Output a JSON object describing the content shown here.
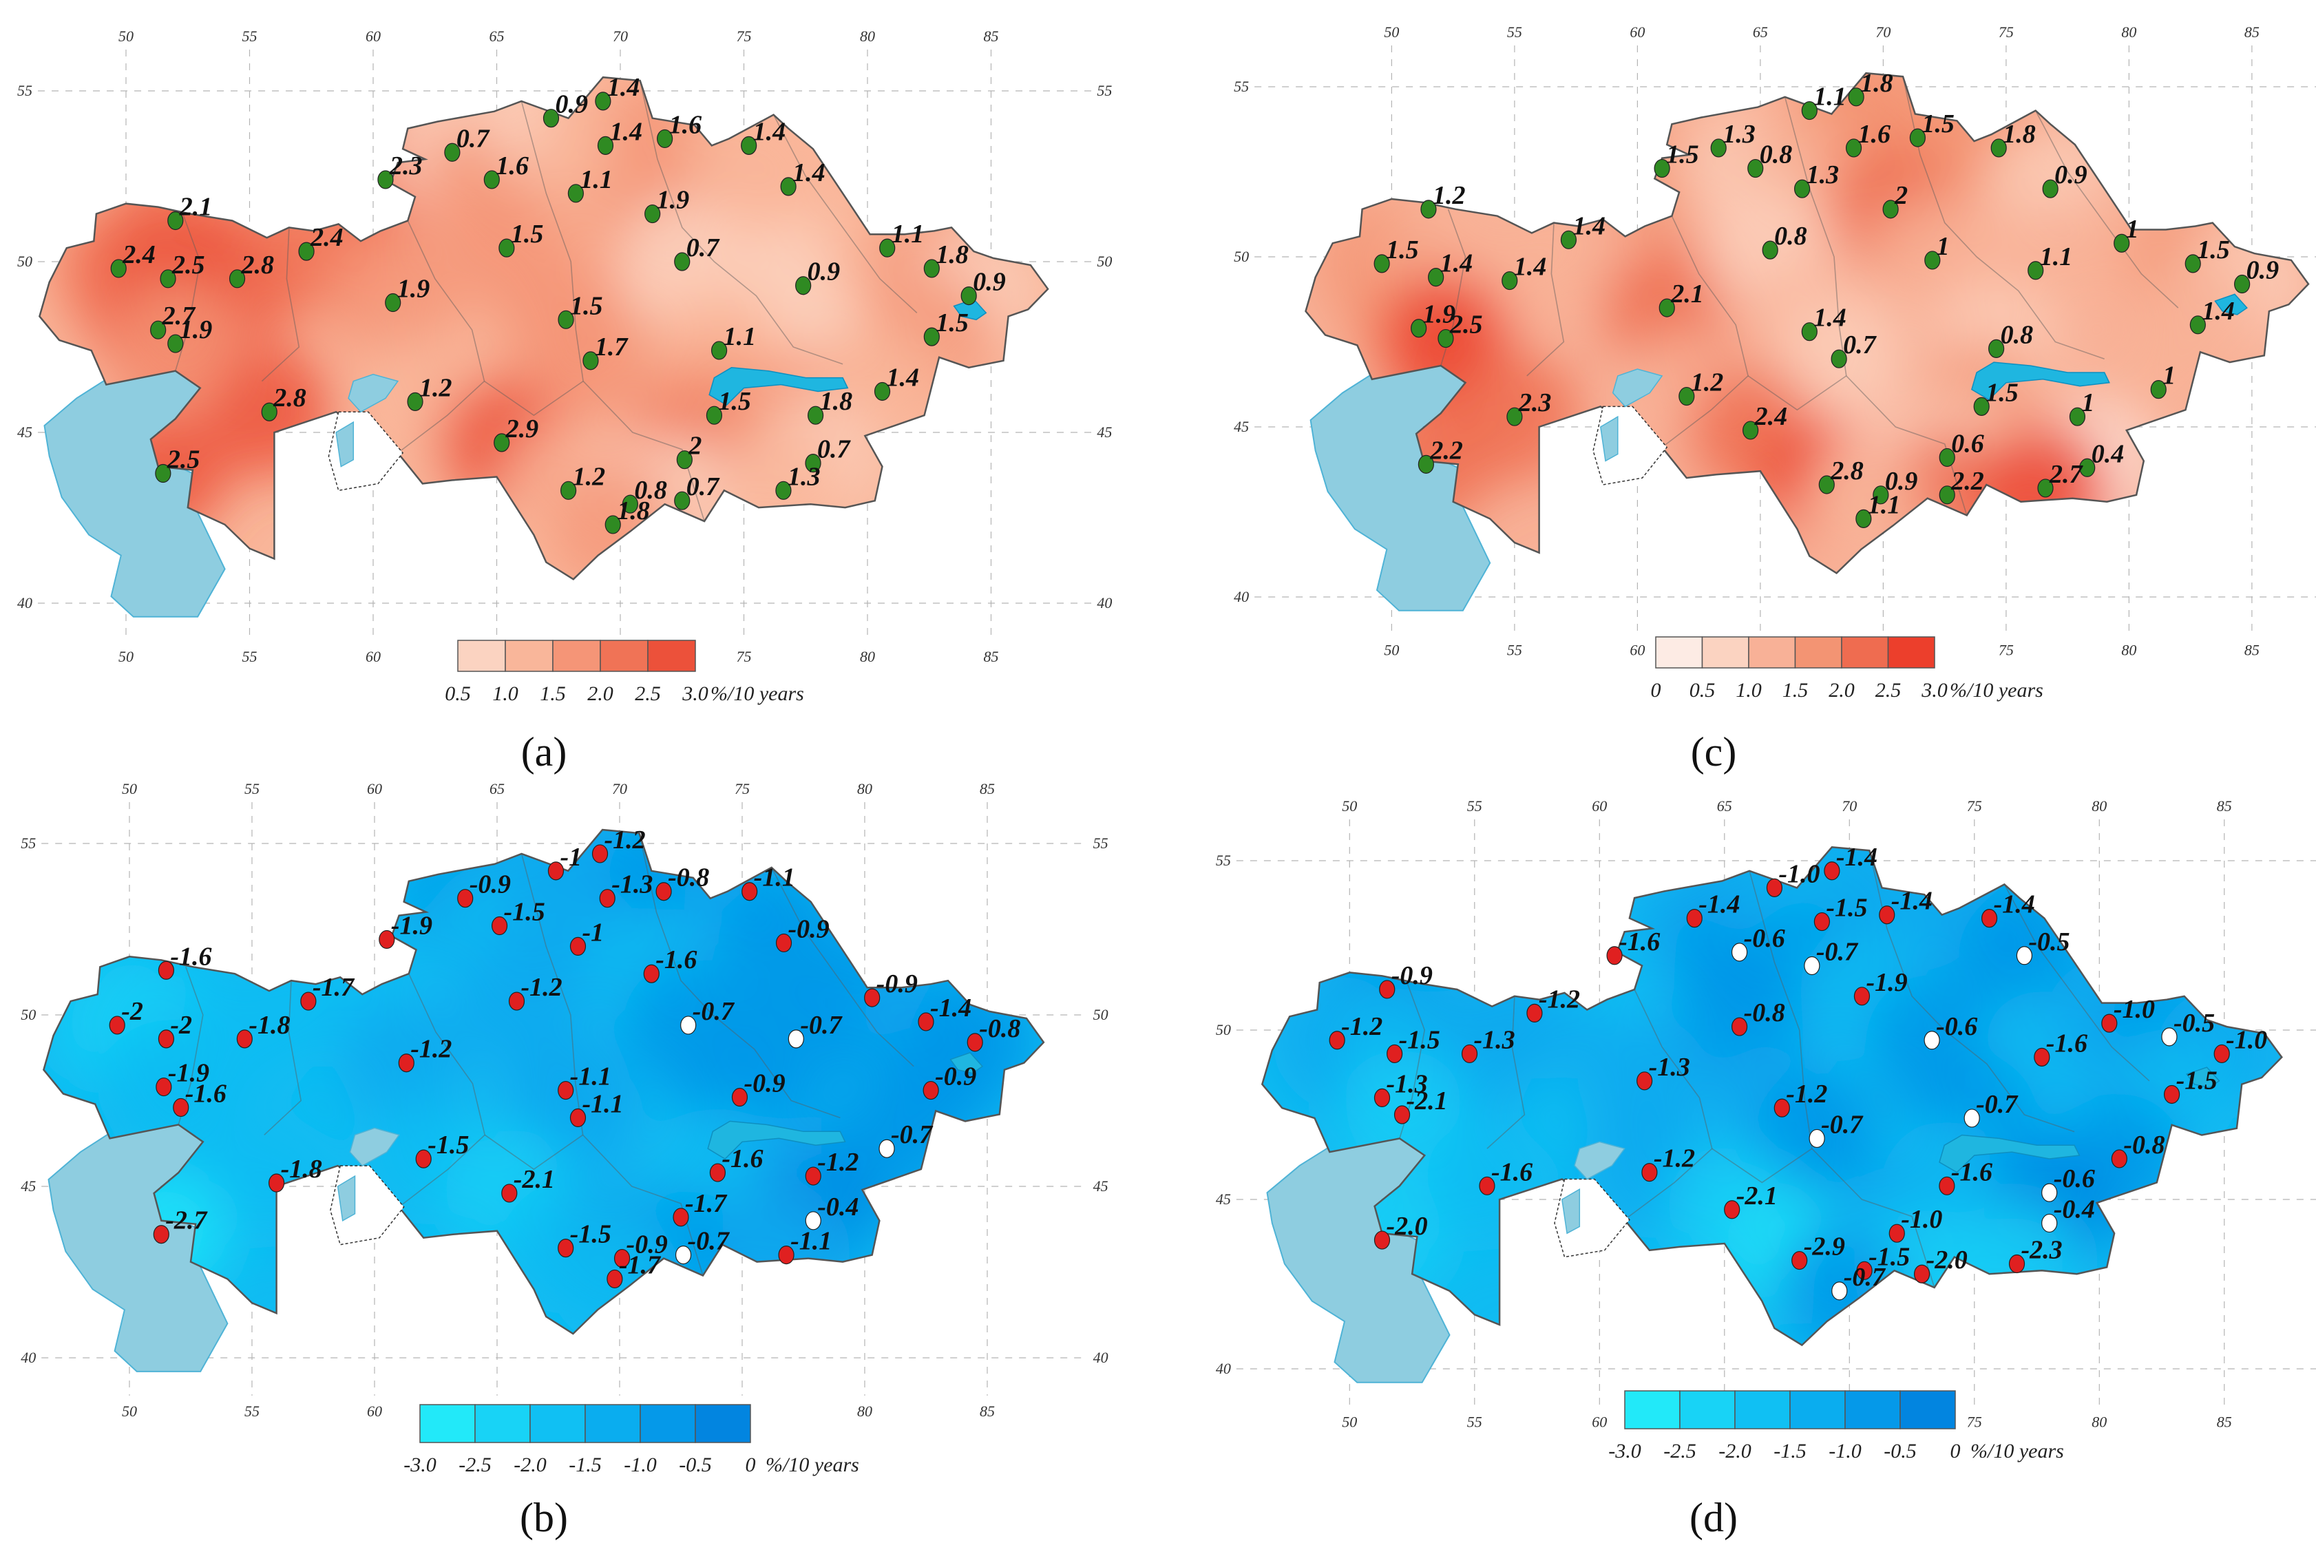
{
  "legend_unit": "%/10 years",
  "sea_color": "#8ecde0",
  "grid_color": "#b4b4b4",
  "panels": [
    {
      "id": "a",
      "caption": "(a)",
      "scheme": "warm",
      "colors": [
        "#fbd3c1",
        "#f9b69a",
        "#f59577",
        "#f07356",
        "#ec513a"
      ],
      "dominant": 1,
      "legend_colors": [
        "#fbd3c1",
        "#f9b69a",
        "#f59577",
        "#f07356",
        "#ec513a"
      ],
      "legend_labels": [
        "0.5",
        "1.0",
        "1.5",
        "2.0",
        "2.5",
        "3.0"
      ],
      "marker_color": "#2f8a22",
      "lon_top": [
        "50",
        "55",
        "60",
        "65",
        "70",
        "75",
        "80",
        "85"
      ],
      "lon_bottom": [
        "50",
        "55",
        "60",
        "65",
        "70",
        "75",
        "80",
        "85"
      ],
      "lat_left": [
        "55",
        "50",
        "45",
        "40"
      ],
      "lat_right": [
        "55",
        "50",
        "45",
        "40"
      ],
      "stations": [
        {
          "v": "2.1",
          "lon": 52,
          "lat": 51.2
        },
        {
          "v": "2.4",
          "lon": 49.7,
          "lat": 49.8
        },
        {
          "v": "2.5",
          "lon": 51.7,
          "lat": 49.5
        },
        {
          "v": "2.8",
          "lon": 54.5,
          "lat": 49.5
        },
        {
          "v": "2.7",
          "lon": 51.3,
          "lat": 48.0
        },
        {
          "v": "1.9",
          "lon": 52.0,
          "lat": 47.6
        },
        {
          "v": "2.8",
          "lon": 55.8,
          "lat": 45.6
        },
        {
          "v": "2.5",
          "lon": 51.5,
          "lat": 43.8
        },
        {
          "v": "2.4",
          "lon": 57.3,
          "lat": 50.3
        },
        {
          "v": "2.3",
          "lon": 60.5,
          "lat": 52.4
        },
        {
          "v": "0.7",
          "lon": 63.2,
          "lat": 53.2
        },
        {
          "v": "1.6",
          "lon": 64.8,
          "lat": 52.4
        },
        {
          "v": "0.9",
          "lon": 67.2,
          "lat": 54.2
        },
        {
          "v": "1.4",
          "lon": 69.3,
          "lat": 54.7
        },
        {
          "v": "1.4",
          "lon": 69.4,
          "lat": 53.4
        },
        {
          "v": "1.6",
          "lon": 71.8,
          "lat": 53.6
        },
        {
          "v": "1.1",
          "lon": 68.2,
          "lat": 52.0
        },
        {
          "v": "1.9",
          "lon": 71.3,
          "lat": 51.4
        },
        {
          "v": "1.4",
          "lon": 75.2,
          "lat": 53.4
        },
        {
          "v": "1.4",
          "lon": 76.8,
          "lat": 52.2
        },
        {
          "v": "1.5",
          "lon": 65.4,
          "lat": 50.4
        },
        {
          "v": "0.7",
          "lon": 72.5,
          "lat": 50.0
        },
        {
          "v": "0.9",
          "lon": 77.4,
          "lat": 49.3
        },
        {
          "v": "1.1",
          "lon": 80.8,
          "lat": 50.4
        },
        {
          "v": "1.8",
          "lon": 82.6,
          "lat": 49.8
        },
        {
          "v": "0.9",
          "lon": 84.1,
          "lat": 49.0
        },
        {
          "v": "1.5",
          "lon": 82.6,
          "lat": 47.8
        },
        {
          "v": "1.9",
          "lon": 60.8,
          "lat": 48.8
        },
        {
          "v": "1.5",
          "lon": 67.8,
          "lat": 48.3
        },
        {
          "v": "1.7",
          "lon": 68.8,
          "lat": 47.1
        },
        {
          "v": "1.1",
          "lon": 74.0,
          "lat": 47.4
        },
        {
          "v": "1.2",
          "lon": 61.7,
          "lat": 45.9
        },
        {
          "v": "2.9",
          "lon": 65.2,
          "lat": 44.7
        },
        {
          "v": "1.5",
          "lon": 73.8,
          "lat": 45.5
        },
        {
          "v": "1.8",
          "lon": 77.9,
          "lat": 45.5
        },
        {
          "v": "1.4",
          "lon": 80.6,
          "lat": 46.2
        },
        {
          "v": "0.7",
          "lon": 77.8,
          "lat": 44.1
        },
        {
          "v": "2",
          "lon": 72.6,
          "lat": 44.2
        },
        {
          "v": "1.2",
          "lon": 67.9,
          "lat": 43.3
        },
        {
          "v": "0.8",
          "lon": 70.4,
          "lat": 42.9
        },
        {
          "v": "0.7",
          "lon": 72.5,
          "lat": 43.0
        },
        {
          "v": "1.3",
          "lon": 76.6,
          "lat": 43.3
        },
        {
          "v": "1.8",
          "lon": 69.7,
          "lat": 42.3
        }
      ]
    },
    {
      "id": "c",
      "caption": "(c)",
      "scheme": "warm",
      "colors": [
        "#fde7de",
        "#fbcfbb",
        "#f8b197",
        "#f39473",
        "#ef6c50",
        "#ec3f2c"
      ],
      "dominant": 2,
      "legend_colors": [
        "#fdebe4",
        "#fbd3c1",
        "#f8b197",
        "#f39473",
        "#ef6c50",
        "#ec3f2c"
      ],
      "legend_labels": [
        "0",
        "0.5",
        "1.0",
        "1.5",
        "2.0",
        "2.5",
        "3.0"
      ],
      "marker_color": "#2f8a22",
      "lon_top": [
        "50",
        "55",
        "60",
        "65",
        "70",
        "75",
        "80",
        "85"
      ],
      "lon_bottom": [
        "50",
        "55",
        "60",
        "65",
        "70",
        "75",
        "80",
        "85"
      ],
      "lat_left": [
        "55",
        "50",
        "45",
        "40"
      ],
      "lat_right": [
        "55",
        "50",
        "45",
        "40"
      ],
      "stations": [
        {
          "v": "1.2",
          "lon": 51.5,
          "lat": 51.4
        },
        {
          "v": "1.5",
          "lon": 49.6,
          "lat": 49.8
        },
        {
          "v": "1.4",
          "lon": 51.8,
          "lat": 49.4
        },
        {
          "v": "1.4",
          "lon": 54.8,
          "lat": 49.3
        },
        {
          "v": "1.9",
          "lon": 51.1,
          "lat": 47.9
        },
        {
          "v": "2.5",
          "lon": 52.2,
          "lat": 47.6
        },
        {
          "v": "2.3",
          "lon": 55.0,
          "lat": 45.3
        },
        {
          "v": "2.2",
          "lon": 51.4,
          "lat": 43.9
        },
        {
          "v": "1.4",
          "lon": 57.2,
          "lat": 50.5
        },
        {
          "v": "2.1",
          "lon": 61.2,
          "lat": 48.5
        },
        {
          "v": "1.2",
          "lon": 62.0,
          "lat": 45.9
        },
        {
          "v": "1.5",
          "lon": 61.0,
          "lat": 52.6
        },
        {
          "v": "1.3",
          "lon": 63.3,
          "lat": 53.2
        },
        {
          "v": "0.8",
          "lon": 64.8,
          "lat": 52.6
        },
        {
          "v": "1.1",
          "lon": 67.0,
          "lat": 54.3
        },
        {
          "v": "1.8",
          "lon": 68.9,
          "lat": 54.7
        },
        {
          "v": "1.6",
          "lon": 68.8,
          "lat": 53.2
        },
        {
          "v": "1.5",
          "lon": 71.4,
          "lat": 53.5
        },
        {
          "v": "1.8",
          "lon": 74.7,
          "lat": 53.2
        },
        {
          "v": "1.3",
          "lon": 66.7,
          "lat": 52.0
        },
        {
          "v": "2",
          "lon": 70.3,
          "lat": 51.4
        },
        {
          "v": "0.9",
          "lon": 76.8,
          "lat": 52.0
        },
        {
          "v": "0.8",
          "lon": 65.4,
          "lat": 50.2
        },
        {
          "v": "1",
          "lon": 72.0,
          "lat": 49.9
        },
        {
          "v": "1.1",
          "lon": 76.2,
          "lat": 49.6
        },
        {
          "v": "1",
          "lon": 79.7,
          "lat": 50.4
        },
        {
          "v": "1.5",
          "lon": 82.6,
          "lat": 49.8
        },
        {
          "v": "0.9",
          "lon": 84.6,
          "lat": 49.2
        },
        {
          "v": "1.4",
          "lon": 82.8,
          "lat": 48.0
        },
        {
          "v": "1.4",
          "lon": 67.0,
          "lat": 47.8
        },
        {
          "v": "0.7",
          "lon": 68.2,
          "lat": 47.0
        },
        {
          "v": "0.8",
          "lon": 74.6,
          "lat": 47.3
        },
        {
          "v": "1.5",
          "lon": 74.0,
          "lat": 45.6
        },
        {
          "v": "1",
          "lon": 77.9,
          "lat": 45.3
        },
        {
          "v": "1",
          "lon": 81.2,
          "lat": 46.1
        },
        {
          "v": "2.4",
          "lon": 64.6,
          "lat": 44.9
        },
        {
          "v": "2.8",
          "lon": 67.7,
          "lat": 43.3
        },
        {
          "v": "0.6",
          "lon": 72.6,
          "lat": 44.1
        },
        {
          "v": "0.4",
          "lon": 78.3,
          "lat": 43.8
        },
        {
          "v": "0.9",
          "lon": 69.9,
          "lat": 43.0
        },
        {
          "v": "2.2",
          "lon": 72.6,
          "lat": 43.0
        },
        {
          "v": "2.7",
          "lon": 76.6,
          "lat": 43.2
        },
        {
          "v": "1.1",
          "lon": 69.2,
          "lat": 42.3
        }
      ]
    },
    {
      "id": "b",
      "caption": "(b)",
      "scheme": "cool",
      "colors": [
        "#22e4f8",
        "#18cff6",
        "#10bcf2",
        "#0aa9ee",
        "#0596e8",
        "#0285e0"
      ],
      "dominant": 2,
      "legend_colors": [
        "#22e9f9",
        "#18d3f6",
        "#10c0f3",
        "#0aadef",
        "#0599e9",
        "#0285e0"
      ],
      "legend_labels": [
        "-3.0",
        "-2.5",
        "-2.0",
        "-1.5",
        "-1.0",
        "-0.5",
        "0"
      ],
      "marker_color": "#e02020",
      "lon_top": [
        "50",
        "55",
        "60",
        "65",
        "70",
        "75",
        "80",
        "85"
      ],
      "lon_bottom": [
        "50",
        "55",
        "60",
        "65",
        "70",
        "75",
        "80",
        "85"
      ],
      "lat_left": [
        "55",
        "50",
        "45",
        "40"
      ],
      "lat_right": [
        "55",
        "50",
        "45",
        "40"
      ],
      "stations": [
        {
          "v": "-1.6",
          "lon": 51.5,
          "lat": 51.3
        },
        {
          "v": "-2",
          "lon": 49.5,
          "lat": 49.7
        },
        {
          "v": "-2",
          "lon": 51.5,
          "lat": 49.3
        },
        {
          "v": "-1.8",
          "lon": 54.7,
          "lat": 49.3
        },
        {
          "v": "-1.7",
          "lon": 57.3,
          "lat": 50.4
        },
        {
          "v": "-1.9",
          "lon": 51.4,
          "lat": 47.9
        },
        {
          "v": "-1.6",
          "lon": 52.1,
          "lat": 47.3
        },
        {
          "v": "-1.8",
          "lon": 56.0,
          "lat": 45.1
        },
        {
          "v": "-2.7",
          "lon": 51.3,
          "lat": 43.6
        },
        {
          "v": "-1.9",
          "lon": 60.5,
          "lat": 52.2
        },
        {
          "v": "-0.9",
          "lon": 63.7,
          "lat": 53.4
        },
        {
          "v": "-1.5",
          "lon": 65.1,
          "lat": 52.6
        },
        {
          "v": "-1",
          "lon": 67.4,
          "lat": 54.2
        },
        {
          "v": "-1.2",
          "lon": 69.2,
          "lat": 54.7
        },
        {
          "v": "-1.3",
          "lon": 69.5,
          "lat": 53.4
        },
        {
          "v": "-0.8",
          "lon": 71.8,
          "lat": 53.6
        },
        {
          "v": "-1.1",
          "lon": 75.3,
          "lat": 53.6
        },
        {
          "v": "-1",
          "lon": 68.3,
          "lat": 52.0
        },
        {
          "v": "-1.6",
          "lon": 71.3,
          "lat": 51.2
        },
        {
          "v": "-0.9",
          "lon": 76.7,
          "lat": 52.1
        },
        {
          "v": "-1.2",
          "lon": 65.8,
          "lat": 50.4
        },
        {
          "v": "-0.7",
          "lon": 72.8,
          "lat": 49.7
        },
        {
          "v": "-0.7",
          "lon": 77.2,
          "lat": 49.3
        },
        {
          "v": "-0.9",
          "lon": 80.3,
          "lat": 50.5
        },
        {
          "v": "-1.4",
          "lon": 82.5,
          "lat": 49.8
        },
        {
          "v": "-0.8",
          "lon": 84.5,
          "lat": 49.2
        },
        {
          "v": "-0.9",
          "lon": 82.7,
          "lat": 47.8
        },
        {
          "v": "-1.2",
          "lon": 61.3,
          "lat": 48.6
        },
        {
          "v": "-1.1",
          "lon": 67.8,
          "lat": 47.8
        },
        {
          "v": "-1.1",
          "lon": 68.3,
          "lat": 47.0
        },
        {
          "v": "-0.9",
          "lon": 74.9,
          "lat": 47.6
        },
        {
          "v": "-1.5",
          "lon": 62.0,
          "lat": 45.8
        },
        {
          "v": "-2.1",
          "lon": 65.5,
          "lat": 44.8
        },
        {
          "v": "-1.6",
          "lon": 74.0,
          "lat": 45.4
        },
        {
          "v": "-1.2",
          "lon": 77.9,
          "lat": 45.3
        },
        {
          "v": "-0.7",
          "lon": 80.9,
          "lat": 46.1
        },
        {
          "v": "-0.4",
          "lon": 77.9,
          "lat": 44.0
        },
        {
          "v": "-1.7",
          "lon": 72.5,
          "lat": 44.1
        },
        {
          "v": "-1.5",
          "lon": 67.8,
          "lat": 43.2
        },
        {
          "v": "-0.9",
          "lon": 70.1,
          "lat": 42.9
        },
        {
          "v": "-0.7",
          "lon": 72.6,
          "lat": 43.0
        },
        {
          "v": "-1.1",
          "lon": 76.8,
          "lat": 43.0
        },
        {
          "v": "-1.7",
          "lon": 69.8,
          "lat": 42.3
        }
      ]
    },
    {
      "id": "d",
      "caption": "(d)",
      "scheme": "cool",
      "colors": [
        "#22e4f8",
        "#18cff6",
        "#10bcf2",
        "#0aa9ee",
        "#0596e8",
        "#0285e0"
      ],
      "dominant": 2,
      "legend_colors": [
        "#22e9f9",
        "#18d3f6",
        "#10c0f3",
        "#0aadef",
        "#0599e9",
        "#0285e0"
      ],
      "legend_labels": [
        "-3.0",
        "-2.5",
        "-2.0",
        "-1.5",
        "-1.0",
        "-0.5",
        "0"
      ],
      "marker_color": "#e02020",
      "lon_top": [
        "50",
        "55",
        "60",
        "65",
        "70",
        "75",
        "80",
        "85"
      ],
      "lon_bottom": [
        "50",
        "55",
        "60",
        "65",
        "70",
        "75",
        "80",
        "85"
      ],
      "lat_left": [
        "55",
        "50",
        "45",
        "40"
      ],
      "lat_right": [
        "55",
        "50",
        "45",
        "40"
      ],
      "stations": [
        {
          "v": "-0.9",
          "lon": 51.5,
          "lat": 51.2
        },
        {
          "v": "-1.2",
          "lon": 49.5,
          "lat": 49.7
        },
        {
          "v": "-1.5",
          "lon": 51.8,
          "lat": 49.3
        },
        {
          "v": "-1.3",
          "lon": 54.8,
          "lat": 49.3
        },
        {
          "v": "-1.2",
          "lon": 57.4,
          "lat": 50.5
        },
        {
          "v": "-1.3",
          "lon": 51.3,
          "lat": 48.0
        },
        {
          "v": "-2.1",
          "lon": 52.1,
          "lat": 47.5
        },
        {
          "v": "-1.6",
          "lon": 55.5,
          "lat": 45.4
        },
        {
          "v": "-2.0",
          "lon": 51.3,
          "lat": 43.8
        },
        {
          "v": "-1.6",
          "lon": 60.6,
          "lat": 52.2
        },
        {
          "v": "-1.4",
          "lon": 63.8,
          "lat": 53.3
        },
        {
          "v": "-0.6",
          "lon": 65.6,
          "lat": 52.3
        },
        {
          "v": "-1.0",
          "lon": 67.0,
          "lat": 54.2
        },
        {
          "v": "-1.4",
          "lon": 69.3,
          "lat": 54.7
        },
        {
          "v": "-1.5",
          "lon": 68.9,
          "lat": 53.2
        },
        {
          "v": "-1.4",
          "lon": 71.5,
          "lat": 53.4
        },
        {
          "v": "-1.4",
          "lon": 75.6,
          "lat": 53.3
        },
        {
          "v": "-0.7",
          "lon": 68.5,
          "lat": 51.9
        },
        {
          "v": "-0.5",
          "lon": 77.0,
          "lat": 52.2
        },
        {
          "v": "-1.9",
          "lon": 70.5,
          "lat": 51.0
        },
        {
          "v": "-0.8",
          "lon": 65.6,
          "lat": 50.1
        },
        {
          "v": "-0.6",
          "lon": 73.3,
          "lat": 49.7
        },
        {
          "v": "-1.6",
          "lon": 77.7,
          "lat": 49.2
        },
        {
          "v": "-1.0",
          "lon": 80.4,
          "lat": 50.2
        },
        {
          "v": "-0.5",
          "lon": 82.8,
          "lat": 49.8
        },
        {
          "v": "-1.0",
          "lon": 84.9,
          "lat": 49.3
        },
        {
          "v": "-1.5",
          "lon": 82.9,
          "lat": 48.1
        },
        {
          "v": "-1.3",
          "lon": 61.8,
          "lat": 48.5
        },
        {
          "v": "-1.2",
          "lon": 67.3,
          "lat": 47.7
        },
        {
          "v": "-0.7",
          "lon": 68.7,
          "lat": 46.8
        },
        {
          "v": "-0.7",
          "lon": 74.9,
          "lat": 47.4
        },
        {
          "v": "-1.2",
          "lon": 62.0,
          "lat": 45.8
        },
        {
          "v": "-2.1",
          "lon": 65.3,
          "lat": 44.7
        },
        {
          "v": "-1.6",
          "lon": 73.9,
          "lat": 45.4
        },
        {
          "v": "-0.6",
          "lon": 78.0,
          "lat": 45.2
        },
        {
          "v": "-0.8",
          "lon": 80.8,
          "lat": 46.2
        },
        {
          "v": "-0.4",
          "lon": 78.0,
          "lat": 44.3
        },
        {
          "v": "-1.0",
          "lon": 71.9,
          "lat": 44.0
        },
        {
          "v": "-2.9",
          "lon": 68.0,
          "lat": 43.2
        },
        {
          "v": "-1.5",
          "lon": 70.6,
          "lat": 42.9
        },
        {
          "v": "-2.0",
          "lon": 72.9,
          "lat": 42.8
        },
        {
          "v": "-2.3",
          "lon": 76.7,
          "lat": 43.1
        },
        {
          "v": "-0.7",
          "lon": 69.6,
          "lat": 42.3
        }
      ]
    }
  ]
}
